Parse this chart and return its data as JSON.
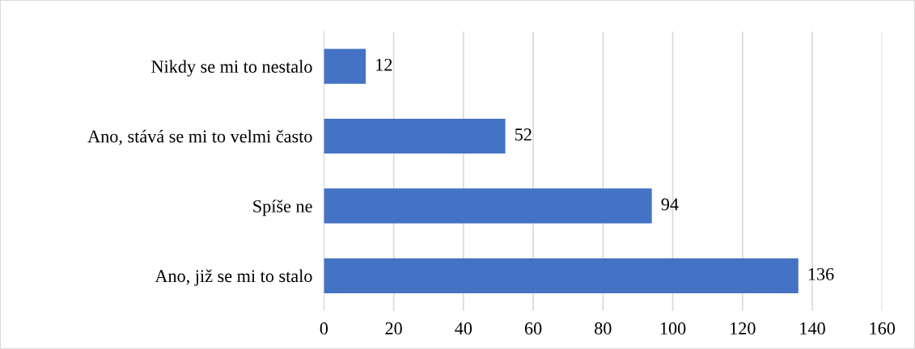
{
  "chart_data": {
    "type": "bar",
    "orientation": "horizontal",
    "categories": [
      "Nikdy se mi to nestalo",
      "Ano, stává se mi to velmi často",
      "Spíše ne",
      "Ano, již se mi to stalo"
    ],
    "values": [
      12,
      52,
      94,
      136
    ],
    "color": "#4472c4",
    "xlim": [
      0,
      160
    ],
    "xticks": [
      0,
      20,
      40,
      60,
      80,
      100,
      120,
      140,
      160
    ],
    "grid": "x",
    "data_labels": true
  }
}
